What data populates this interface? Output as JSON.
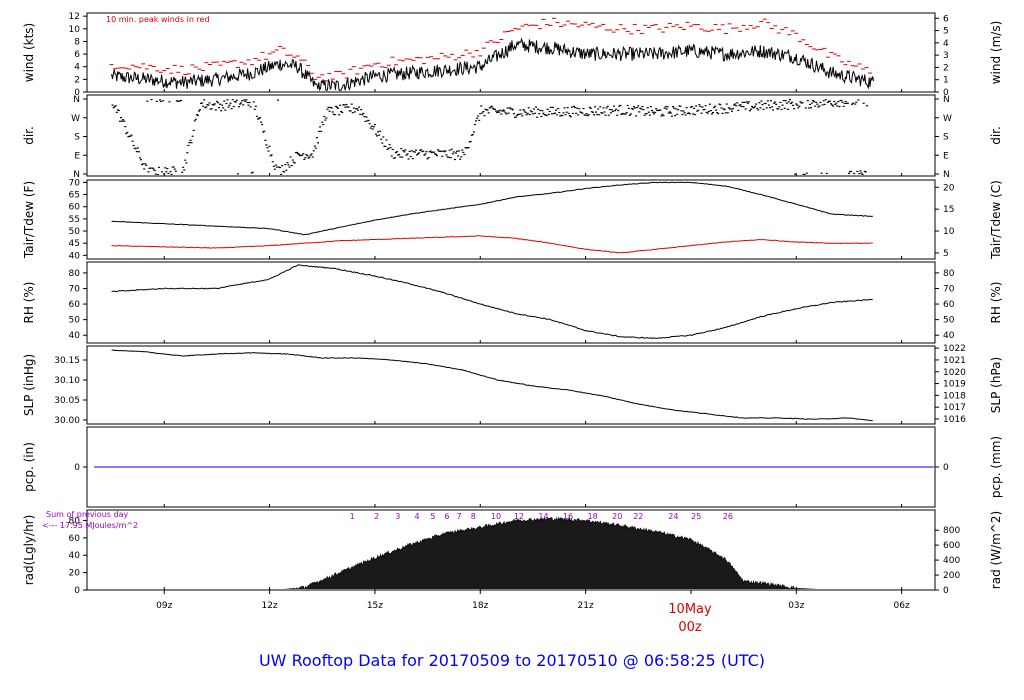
{
  "chart_data": [
    {
      "type": "line",
      "panel": "wind",
      "ylabel": "wind (kts)",
      "ylabel_right": "wind (m/s)",
      "yticks": [
        0,
        2,
        4,
        6,
        8,
        10,
        12
      ],
      "yticks_right": [
        0,
        1,
        2,
        3,
        4,
        5,
        6
      ],
      "ylim": [
        0,
        12.5
      ],
      "annotation": "10 min. peak winds in red",
      "series": [
        {
          "color": "#000000",
          "x": [
            7.5,
            8.5,
            9.5,
            10.5,
            11.5,
            12.3,
            12.8,
            13.3,
            14.0,
            15.0,
            16.0,
            17.0,
            18.0,
            19.0,
            20.0,
            21.0,
            22.0,
            23.0,
            24.0,
            25.0,
            26.0,
            27.0,
            28.0,
            29.2
          ],
          "y": [
            2.5,
            2.0,
            1.5,
            2.0,
            3.0,
            4.5,
            4.0,
            1.0,
            1.0,
            2.5,
            3.0,
            3.5,
            4.0,
            7.5,
            7.0,
            6.0,
            6.0,
            6.0,
            6.5,
            6.0,
            6.5,
            5.5,
            3.0,
            1.5
          ]
        },
        {
          "color": "#e00000",
          "style": "dash-markers",
          "x": [
            7.5,
            8.5,
            9.5,
            10.5,
            11.5,
            12.3,
            12.8,
            13.3,
            14.0,
            15.0,
            16.0,
            17.0,
            18.0,
            19.0,
            20.0,
            21.0,
            22.0,
            23.0,
            24.0,
            25.0,
            26.0,
            27.0,
            28.0,
            29.2
          ],
          "y": [
            4.5,
            4.0,
            3.5,
            4.0,
            5.0,
            6.5,
            5.5,
            2.5,
            2.5,
            4.5,
            5.0,
            5.5,
            6.5,
            10.0,
            11.0,
            10.5,
            10.0,
            10.0,
            10.5,
            10.0,
            11.0,
            9.0,
            5.5,
            3.0
          ]
        }
      ]
    },
    {
      "type": "scatter",
      "panel": "direction",
      "ylabel": "dir.",
      "ylabel_right": "dir.",
      "ycategories": [
        "N",
        "E",
        "S",
        "W",
        "N"
      ],
      "series": [
        {
          "color": "#000000",
          "x": [
            7.5,
            8.5,
            9.5,
            10.0,
            10.5,
            11.5,
            12.2,
            12.8,
            13.2,
            13.6,
            14.5,
            15.5,
            16.5,
            17.5,
            18.0,
            19.0,
            20.0,
            21.0,
            22.0,
            23.0,
            24.0,
            25.0,
            26.0,
            27.0,
            28.0,
            29.0
          ],
          "y": [
            350,
            10,
            15,
            340,
            330,
            350,
            10,
            95,
            100,
            300,
            320,
            100,
            100,
            95,
            305,
            300,
            300,
            305,
            310,
            300,
            310,
            320,
            330,
            340,
            350,
            355
          ]
        }
      ]
    },
    {
      "type": "line",
      "panel": "temperature",
      "ylabel": "Tair/Tdew (F)",
      "ylabel_right": "Tair/Tdew (C)",
      "yticks": [
        40,
        45,
        50,
        55,
        60,
        65,
        70
      ],
      "yticks_right": [
        5,
        10,
        15,
        20
      ],
      "ylim": [
        38.5,
        71
      ],
      "series": [
        {
          "color": "#000000",
          "x": [
            7.5,
            9.0,
            10.5,
            12.0,
            13.0,
            14.0,
            15.0,
            16.0,
            17.0,
            18.0,
            19.0,
            20.0,
            21.0,
            22.0,
            23.0,
            24.0,
            25.0,
            26.0,
            27.0,
            28.0,
            29.2
          ],
          "y": [
            54,
            53,
            52,
            51,
            48.5,
            51.5,
            54.5,
            57,
            59,
            61,
            64,
            65.5,
            67.5,
            69,
            70,
            70,
            68.5,
            65,
            61,
            57,
            56
          ]
        },
        {
          "color": "#e00000",
          "x": [
            7.5,
            9.0,
            10.5,
            12.0,
            13.0,
            14.0,
            15.0,
            16.0,
            17.0,
            18.0,
            19.0,
            20.0,
            21.0,
            22.0,
            23.0,
            24.0,
            25.0,
            26.0,
            27.0,
            28.0,
            29.2
          ],
          "y": [
            44,
            43.5,
            43,
            44,
            45,
            46,
            46.5,
            47,
            47.5,
            48,
            47,
            45,
            42.5,
            41,
            42.5,
            44,
            45.5,
            46.5,
            45.5,
            45,
            45
          ]
        }
      ]
    },
    {
      "type": "line",
      "panel": "humidity",
      "ylabel": "RH (%)",
      "ylabel_right": "RH (%)",
      "yticks": [
        40,
        50,
        60,
        70,
        80
      ],
      "ylim": [
        35,
        87
      ],
      "series": [
        {
          "color": "#000000",
          "x": [
            7.5,
            9.0,
            10.5,
            12.0,
            12.8,
            13.8,
            15.0,
            16.0,
            17.0,
            18.0,
            19.0,
            20.0,
            21.0,
            22.0,
            23.0,
            24.0,
            25.0,
            26.0,
            27.0,
            28.0,
            29.2
          ],
          "y": [
            68,
            70,
            70,
            76,
            85,
            83,
            78,
            73,
            67,
            60,
            54,
            50,
            43,
            39,
            38,
            40,
            45,
            52,
            57,
            61,
            63
          ]
        }
      ]
    },
    {
      "type": "line",
      "panel": "pressure",
      "ylabel": "SLP (inHg)",
      "ylabel_right": "SLP (hPa)",
      "yticks": [
        30.0,
        30.05,
        30.1,
        30.15
      ],
      "ytick_labels": [
        "30.00",
        "30.05",
        "30.10",
        "30.15"
      ],
      "yticks_right": [
        1016,
        1017,
        1018,
        1019,
        1020,
        1021,
        1022
      ],
      "ylim": [
        29.99,
        30.185
      ],
      "series": [
        {
          "color": "#000000",
          "x": [
            7.5,
            8.5,
            9.5,
            10.5,
            11.5,
            12.5,
            13.5,
            14.5,
            15.5,
            16.5,
            17.5,
            18.5,
            19.5,
            20.5,
            21.5,
            22.5,
            23.5,
            24.5,
            25.5,
            26.5,
            27.5,
            28.5,
            29.2
          ],
          "y": [
            30.175,
            30.17,
            30.16,
            30.165,
            30.168,
            30.165,
            30.155,
            30.155,
            30.15,
            30.14,
            30.125,
            30.1,
            30.085,
            30.075,
            30.06,
            30.04,
            30.025,
            30.015,
            30.005,
            30.005,
            30.002,
            30.005,
            29.998
          ]
        }
      ]
    },
    {
      "type": "line",
      "panel": "precipitation",
      "ylabel": "pcp. (in)",
      "ylabel_right": "pcp. (mm)",
      "yticks": [
        0
      ],
      "yticks_right": [
        0
      ],
      "ylim": [
        -1,
        1
      ],
      "series": [
        {
          "color": "#0000ff",
          "x": [
            7.0,
            31.0
          ],
          "y": [
            0,
            0
          ]
        }
      ]
    },
    {
      "type": "area",
      "panel": "radiation",
      "ylabel": "rad(Lgly/hr)",
      "ylabel_right": "rad (W/m^2)",
      "yticks": [
        0,
        20,
        40,
        60,
        80
      ],
      "yticks_right": [
        0,
        200,
        400,
        600,
        800
      ],
      "ylim": [
        0,
        92
      ],
      "annotation_lines": [
        "Sum of previous day",
        "<--- 17.95 MJoules/m^2"
      ],
      "hour_marks": [
        "1",
        "2",
        "3",
        "4",
        "5",
        "6",
        "7",
        "8",
        "10",
        "12",
        "14",
        "16",
        "18",
        "20",
        "22",
        "24",
        "25",
        "26"
      ],
      "hour_mark_x": [
        14.35,
        15.05,
        15.65,
        16.2,
        16.65,
        17.05,
        17.4,
        17.8,
        18.45,
        19.1,
        19.8,
        20.5,
        21.2,
        21.9,
        22.5,
        23.5,
        24.15,
        25.05
      ],
      "series": [
        {
          "color": "#000000",
          "x": [
            12.2,
            13.0,
            14.0,
            15.0,
            16.0,
            17.0,
            18.0,
            19.0,
            20.0,
            21.0,
            22.0,
            23.0,
            24.0,
            25.0,
            25.5,
            26.0,
            26.5,
            27.0,
            27.5,
            28.0
          ],
          "y": [
            0,
            3,
            20,
            37,
            52,
            65,
            72,
            80,
            82,
            80,
            74,
            67,
            58,
            35,
            10,
            8,
            5,
            2,
            1,
            0
          ]
        }
      ]
    },
    {
      "type": "x-axis",
      "xticks": [
        9,
        12,
        15,
        18,
        21,
        27,
        30
      ],
      "xtick_labels": [
        "09z",
        "12z",
        "15z",
        "18z",
        "21z",
        "03z",
        "06z"
      ],
      "xlim": [
        6.8,
        30.95
      ],
      "date_x": 24,
      "date_label": "10May",
      "date_sublabel": "00z"
    }
  ],
  "footer": {
    "title": "UW Rooftop Data for 20170509  to  20170510 @ 06:58:25  (UTC)"
  }
}
